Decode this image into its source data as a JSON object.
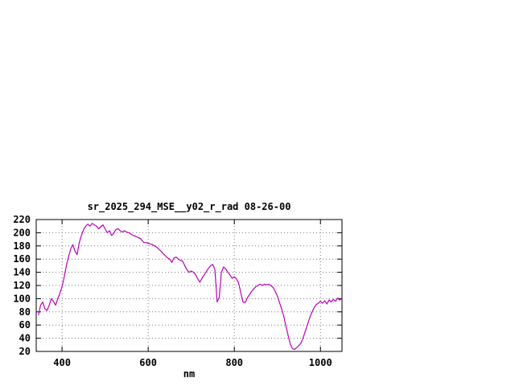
{
  "chart_data": {
    "type": "line",
    "title": "sr_2025_294_MSE__y02_r_rad 08-26-00",
    "xlabel": "nm",
    "ylabel": "",
    "xlim": [
      340,
      1050
    ],
    "ylim": [
      20,
      220
    ],
    "x_ticks": [
      400,
      600,
      800,
      1000
    ],
    "y_ticks": [
      20,
      40,
      60,
      80,
      100,
      120,
      140,
      160,
      180,
      200,
      220
    ],
    "grid": true,
    "legend": "none",
    "line_color": "#bb00bb",
    "series": [
      {
        "name": "sr_2025_294_MSE__y02_r_rad",
        "x_start": 345,
        "x_step": 5,
        "values": [
          75,
          90,
          95,
          85,
          82,
          90,
          100,
          96,
          90,
          100,
          108,
          118,
          133,
          150,
          163,
          175,
          182,
          172,
          167,
          185,
          196,
          205,
          210,
          213,
          210,
          214,
          212,
          210,
          206,
          209,
          212,
          206,
          200,
          203,
          196,
          199,
          205,
          206,
          203,
          201,
          203,
          201,
          200,
          198,
          196,
          195,
          193,
          192,
          189,
          185,
          185,
          184,
          183,
          182,
          180,
          178,
          175,
          172,
          168,
          165,
          162,
          160,
          155,
          162,
          163,
          160,
          158,
          157,
          150,
          144,
          140,
          142,
          140,
          137,
          130,
          125,
          131,
          136,
          141,
          146,
          150,
          152,
          144,
          95,
          102,
          140,
          148,
          145,
          140,
          136,
          131,
          133,
          130,
          124,
          109,
          95,
          94,
          101,
          106,
          111,
          115,
          118,
          120,
          122,
          120,
          122,
          121,
          122,
          120,
          117,
          111,
          104,
          94,
          84,
          73,
          58,
          44,
          31,
          24,
          23,
          26,
          29,
          33,
          41,
          51,
          61,
          71,
          79,
          86,
          91,
          93,
          96,
          93,
          97,
          92,
          98,
          95,
          99,
          96,
          101,
          98,
          100
        ]
      }
    ]
  }
}
